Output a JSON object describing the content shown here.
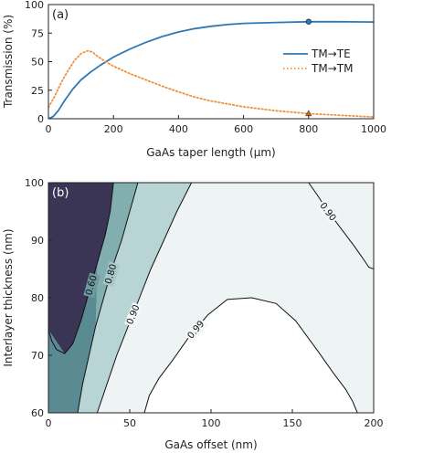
{
  "chart_data": [
    {
      "type": "line",
      "panel_label": "(a)",
      "xlabel": "GaAs taper length (µm)",
      "ylabel": "Transmission (%)",
      "xlim": [
        0,
        1000
      ],
      "ylim": [
        0,
        100
      ],
      "xticks": [
        "0",
        "200",
        "400",
        "600",
        "800",
        "1000"
      ],
      "yticks": [
        "0",
        "25",
        "50",
        "75",
        "100"
      ],
      "legend_position": "center-right",
      "series": [
        {
          "name": "TM→TE",
          "color": "#2e79b5",
          "style": "solid",
          "x": [
            0,
            15,
            30,
            50,
            75,
            100,
            130,
            160,
            200,
            250,
            300,
            350,
            400,
            450,
            500,
            550,
            600,
            700,
            800,
            900,
            1000
          ],
          "y": [
            0,
            2,
            7,
            16,
            26,
            34,
            41,
            47,
            54,
            61,
            67,
            72,
            76,
            79,
            81,
            82.5,
            83.5,
            84.3,
            85,
            85,
            84.7
          ]
        },
        {
          "name": "TM→TM",
          "color": "#f0903a",
          "style": "dotted",
          "x": [
            0,
            20,
            40,
            60,
            80,
            100,
            120,
            135,
            150,
            175,
            200,
            250,
            300,
            350,
            400,
            450,
            500,
            600,
            700,
            800,
            900,
            1000
          ],
          "y": [
            10,
            20,
            32,
            42,
            51,
            57,
            59.5,
            58.5,
            55,
            50,
            46,
            39.5,
            34,
            28.5,
            23.5,
            19,
            15.5,
            10.5,
            7,
            4.5,
            3,
            1.5
          ]
        }
      ],
      "markers": [
        {
          "series": "TM→TE",
          "x": 800,
          "y": 85,
          "shape": "circle"
        },
        {
          "series": "TM→TM",
          "x": 800,
          "y": 4.5,
          "shape": "triangle"
        }
      ]
    },
    {
      "type": "heatmap",
      "panel_label": "(b)",
      "xlabel": "GaAs offset (nm)",
      "ylabel": "Interlayer thickness (nm)",
      "xlim": [
        0,
        200
      ],
      "ylim": [
        60,
        100
      ],
      "xticks": [
        "0",
        "50",
        "100",
        "150",
        "200"
      ],
      "yticks": [
        "60",
        "70",
        "80",
        "90",
        "100"
      ],
      "colormap": [
        "#3a3555",
        "#5a8a92",
        "#b9d4d4",
        "#ffffff"
      ],
      "contours": [
        {
          "level": 0.6,
          "label": "0.60",
          "points": [
            [
              0,
              74.5
            ],
            [
              2,
              72.5
            ],
            [
              5,
              71
            ],
            [
              10,
              70.3
            ],
            [
              15,
              72
            ],
            [
              20,
              76
            ],
            [
              25,
              81
            ],
            [
              30,
              86
            ],
            [
              35,
              91
            ],
            [
              38,
              95
            ],
            [
              40,
              100
            ]
          ]
        },
        {
          "level": 0.8,
          "label": "0.80",
          "points": [
            [
              18,
              60
            ],
            [
              21,
              65
            ],
            [
              25,
              70
            ],
            [
              29,
              75
            ],
            [
              34,
              80
            ],
            [
              39,
              85
            ],
            [
              45,
              90
            ],
            [
              50,
              95
            ],
            [
              55,
              100
            ]
          ]
        },
        {
          "level": 0.9,
          "label": "0.90",
          "points": [
            [
              30,
              60
            ],
            [
              36,
              65
            ],
            [
              42,
              70
            ],
            [
              49,
              75
            ],
            [
              56,
              80
            ],
            [
              63,
              85
            ],
            [
              71,
              90
            ],
            [
              79,
              95
            ],
            [
              88,
              100
            ]
          ]
        },
        {
          "level": 0.99,
          "label": "0.99",
          "points": [
            [
              59,
              60
            ],
            [
              62,
              63
            ],
            [
              68,
              66
            ],
            [
              76,
              69
            ],
            [
              86,
              73
            ],
            [
              98,
              77
            ],
            [
              110,
              79.7
            ],
            [
              125,
              80
            ],
            [
              140,
              79
            ],
            [
              152,
              76
            ],
            [
              165,
              71
            ],
            [
              175,
              67
            ],
            [
              183,
              64
            ],
            [
              187,
              62
            ],
            [
              190,
              60
            ]
          ]
        },
        {
          "level": 0.9,
          "label": "0.90",
          "points": [
            [
              160,
              100
            ],
            [
              165,
              98
            ],
            [
              172,
              95
            ],
            [
              180,
              92
            ],
            [
              188,
              89
            ],
            [
              193,
              87
            ],
            [
              197,
              85.3
            ],
            [
              200,
              85
            ]
          ]
        }
      ]
    }
  ]
}
